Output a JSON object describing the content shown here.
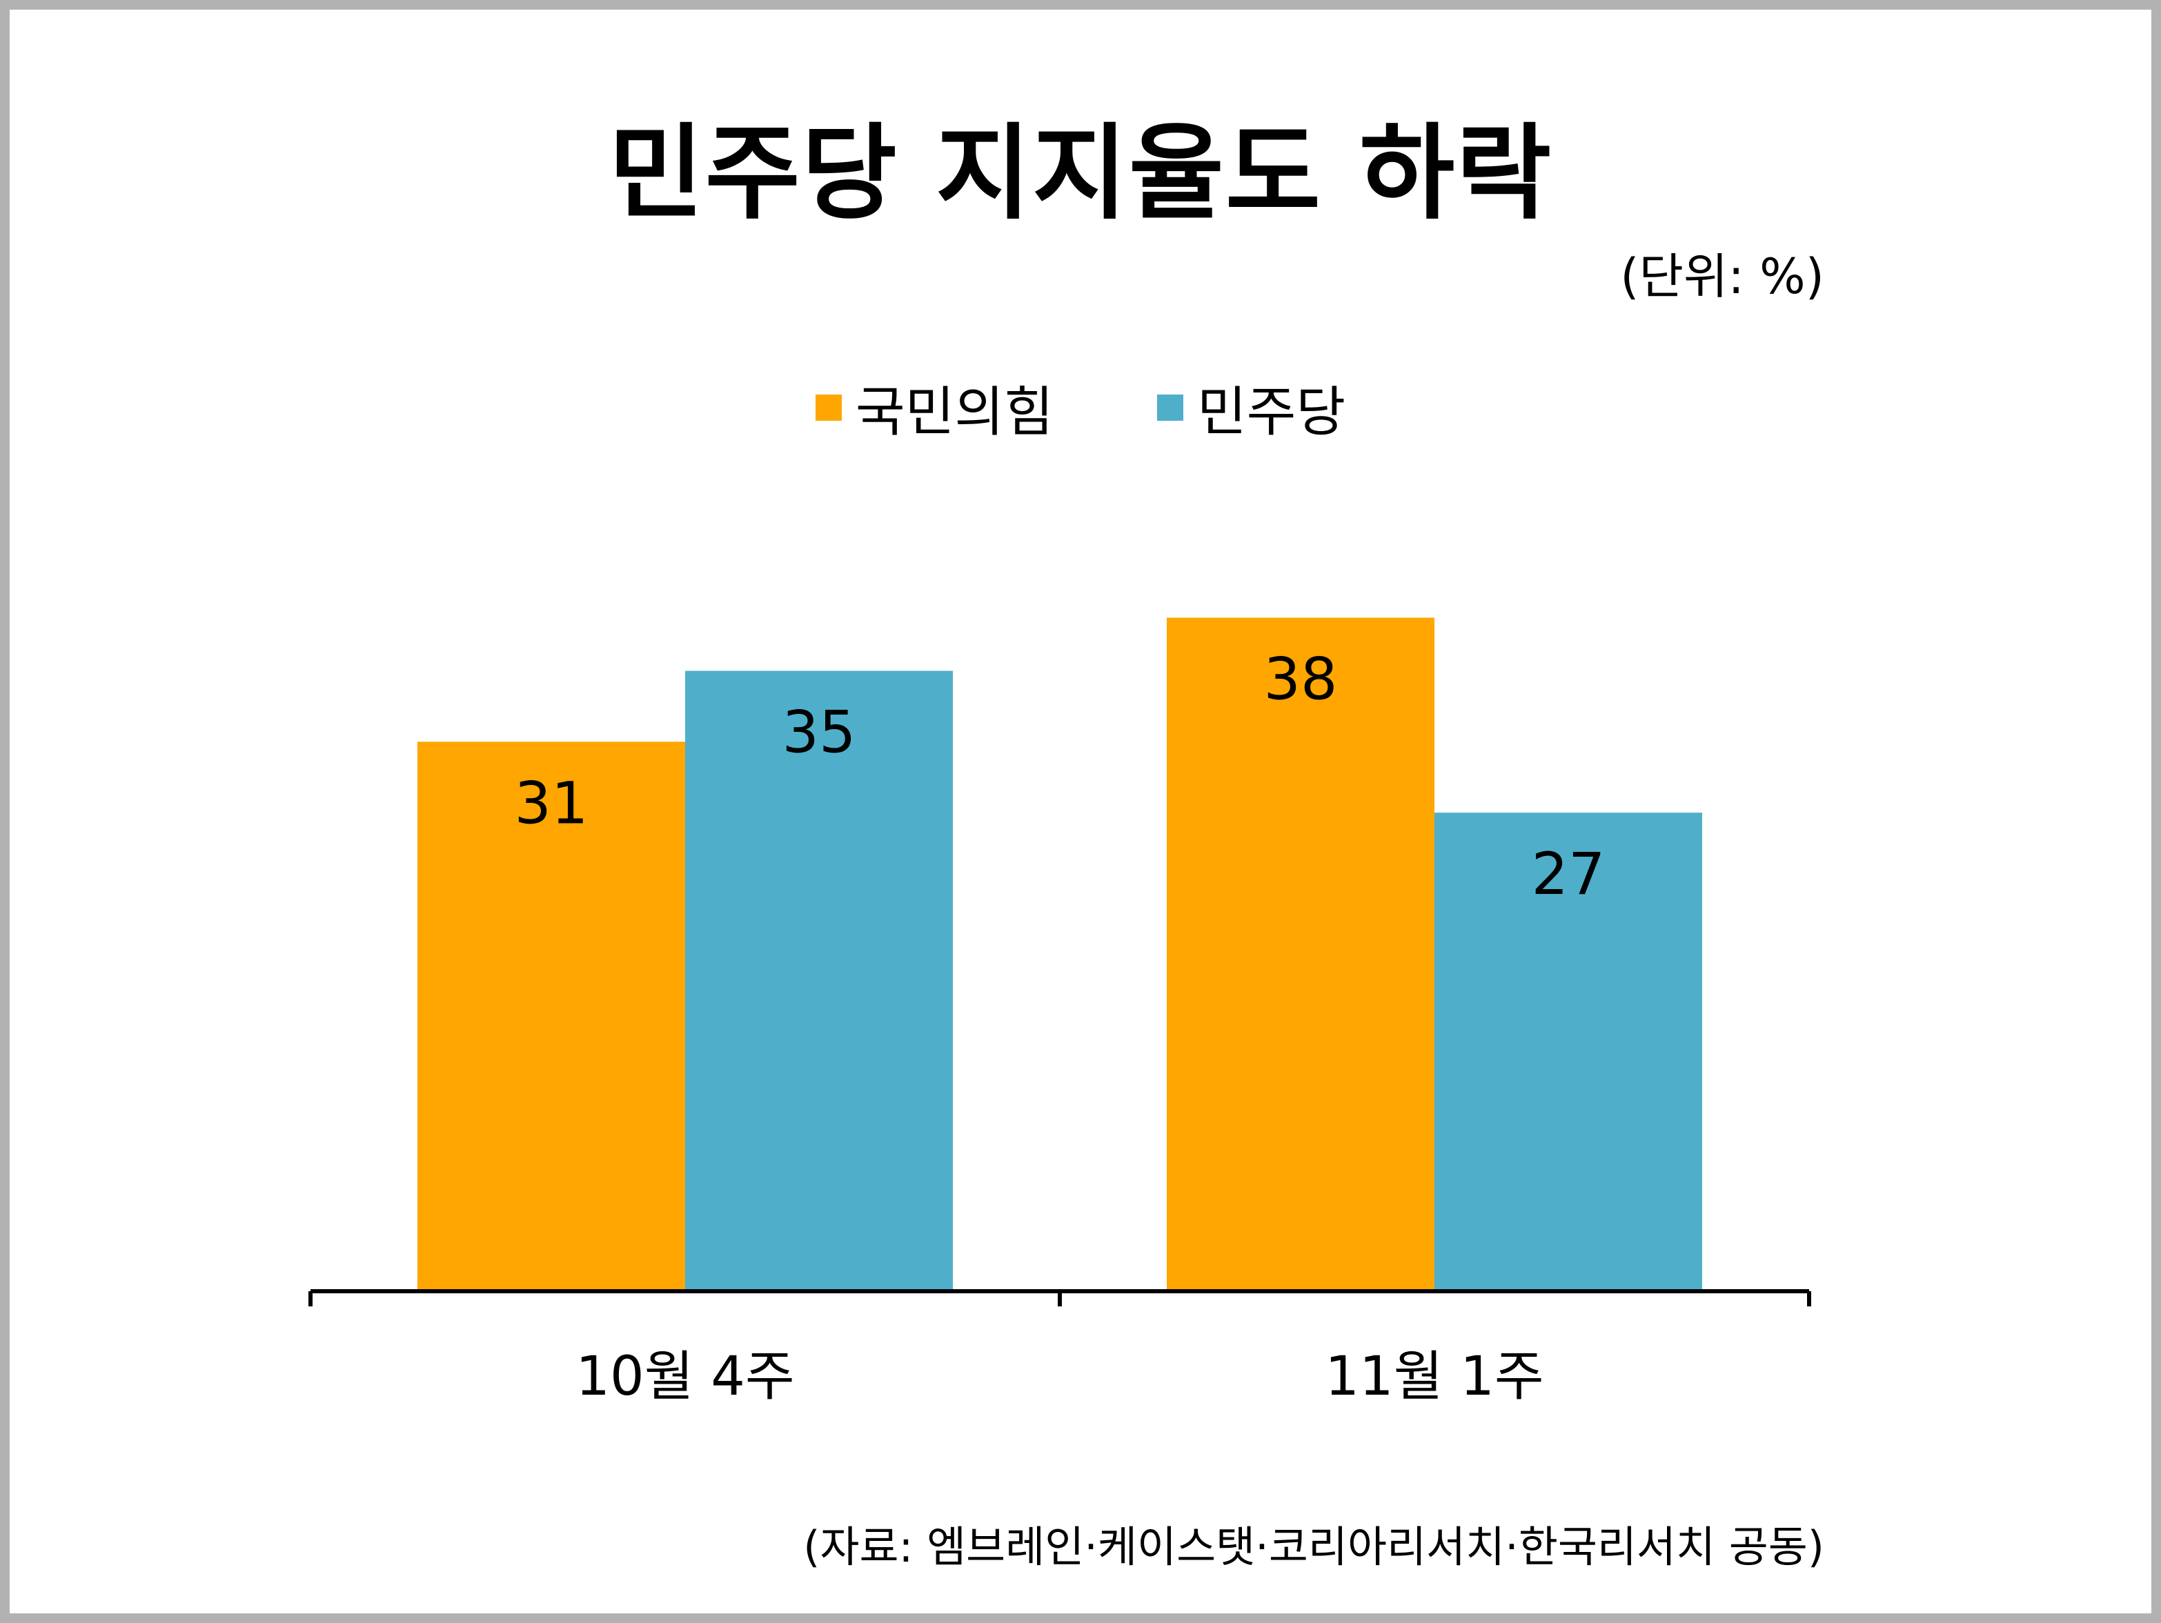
{
  "chart_data": {
    "type": "bar",
    "title": "민주당 지지율도 하락",
    "unit_label": "(단위: %)",
    "categories": [
      "10월 4주",
      "11월 1주"
    ],
    "series": [
      {
        "name": "국민의힘",
        "color": "#FFA600",
        "values": [
          31,
          38
        ]
      },
      {
        "name": "민주당",
        "color": "#4FAFCB",
        "values": [
          35,
          27
        ]
      }
    ],
    "ylim": [
      0,
      43
    ],
    "grid": false,
    "legend_position": "top-center",
    "source": "(자료: 엠브레인·케이스탯·코리아리서치·한국리서치 공동)"
  }
}
